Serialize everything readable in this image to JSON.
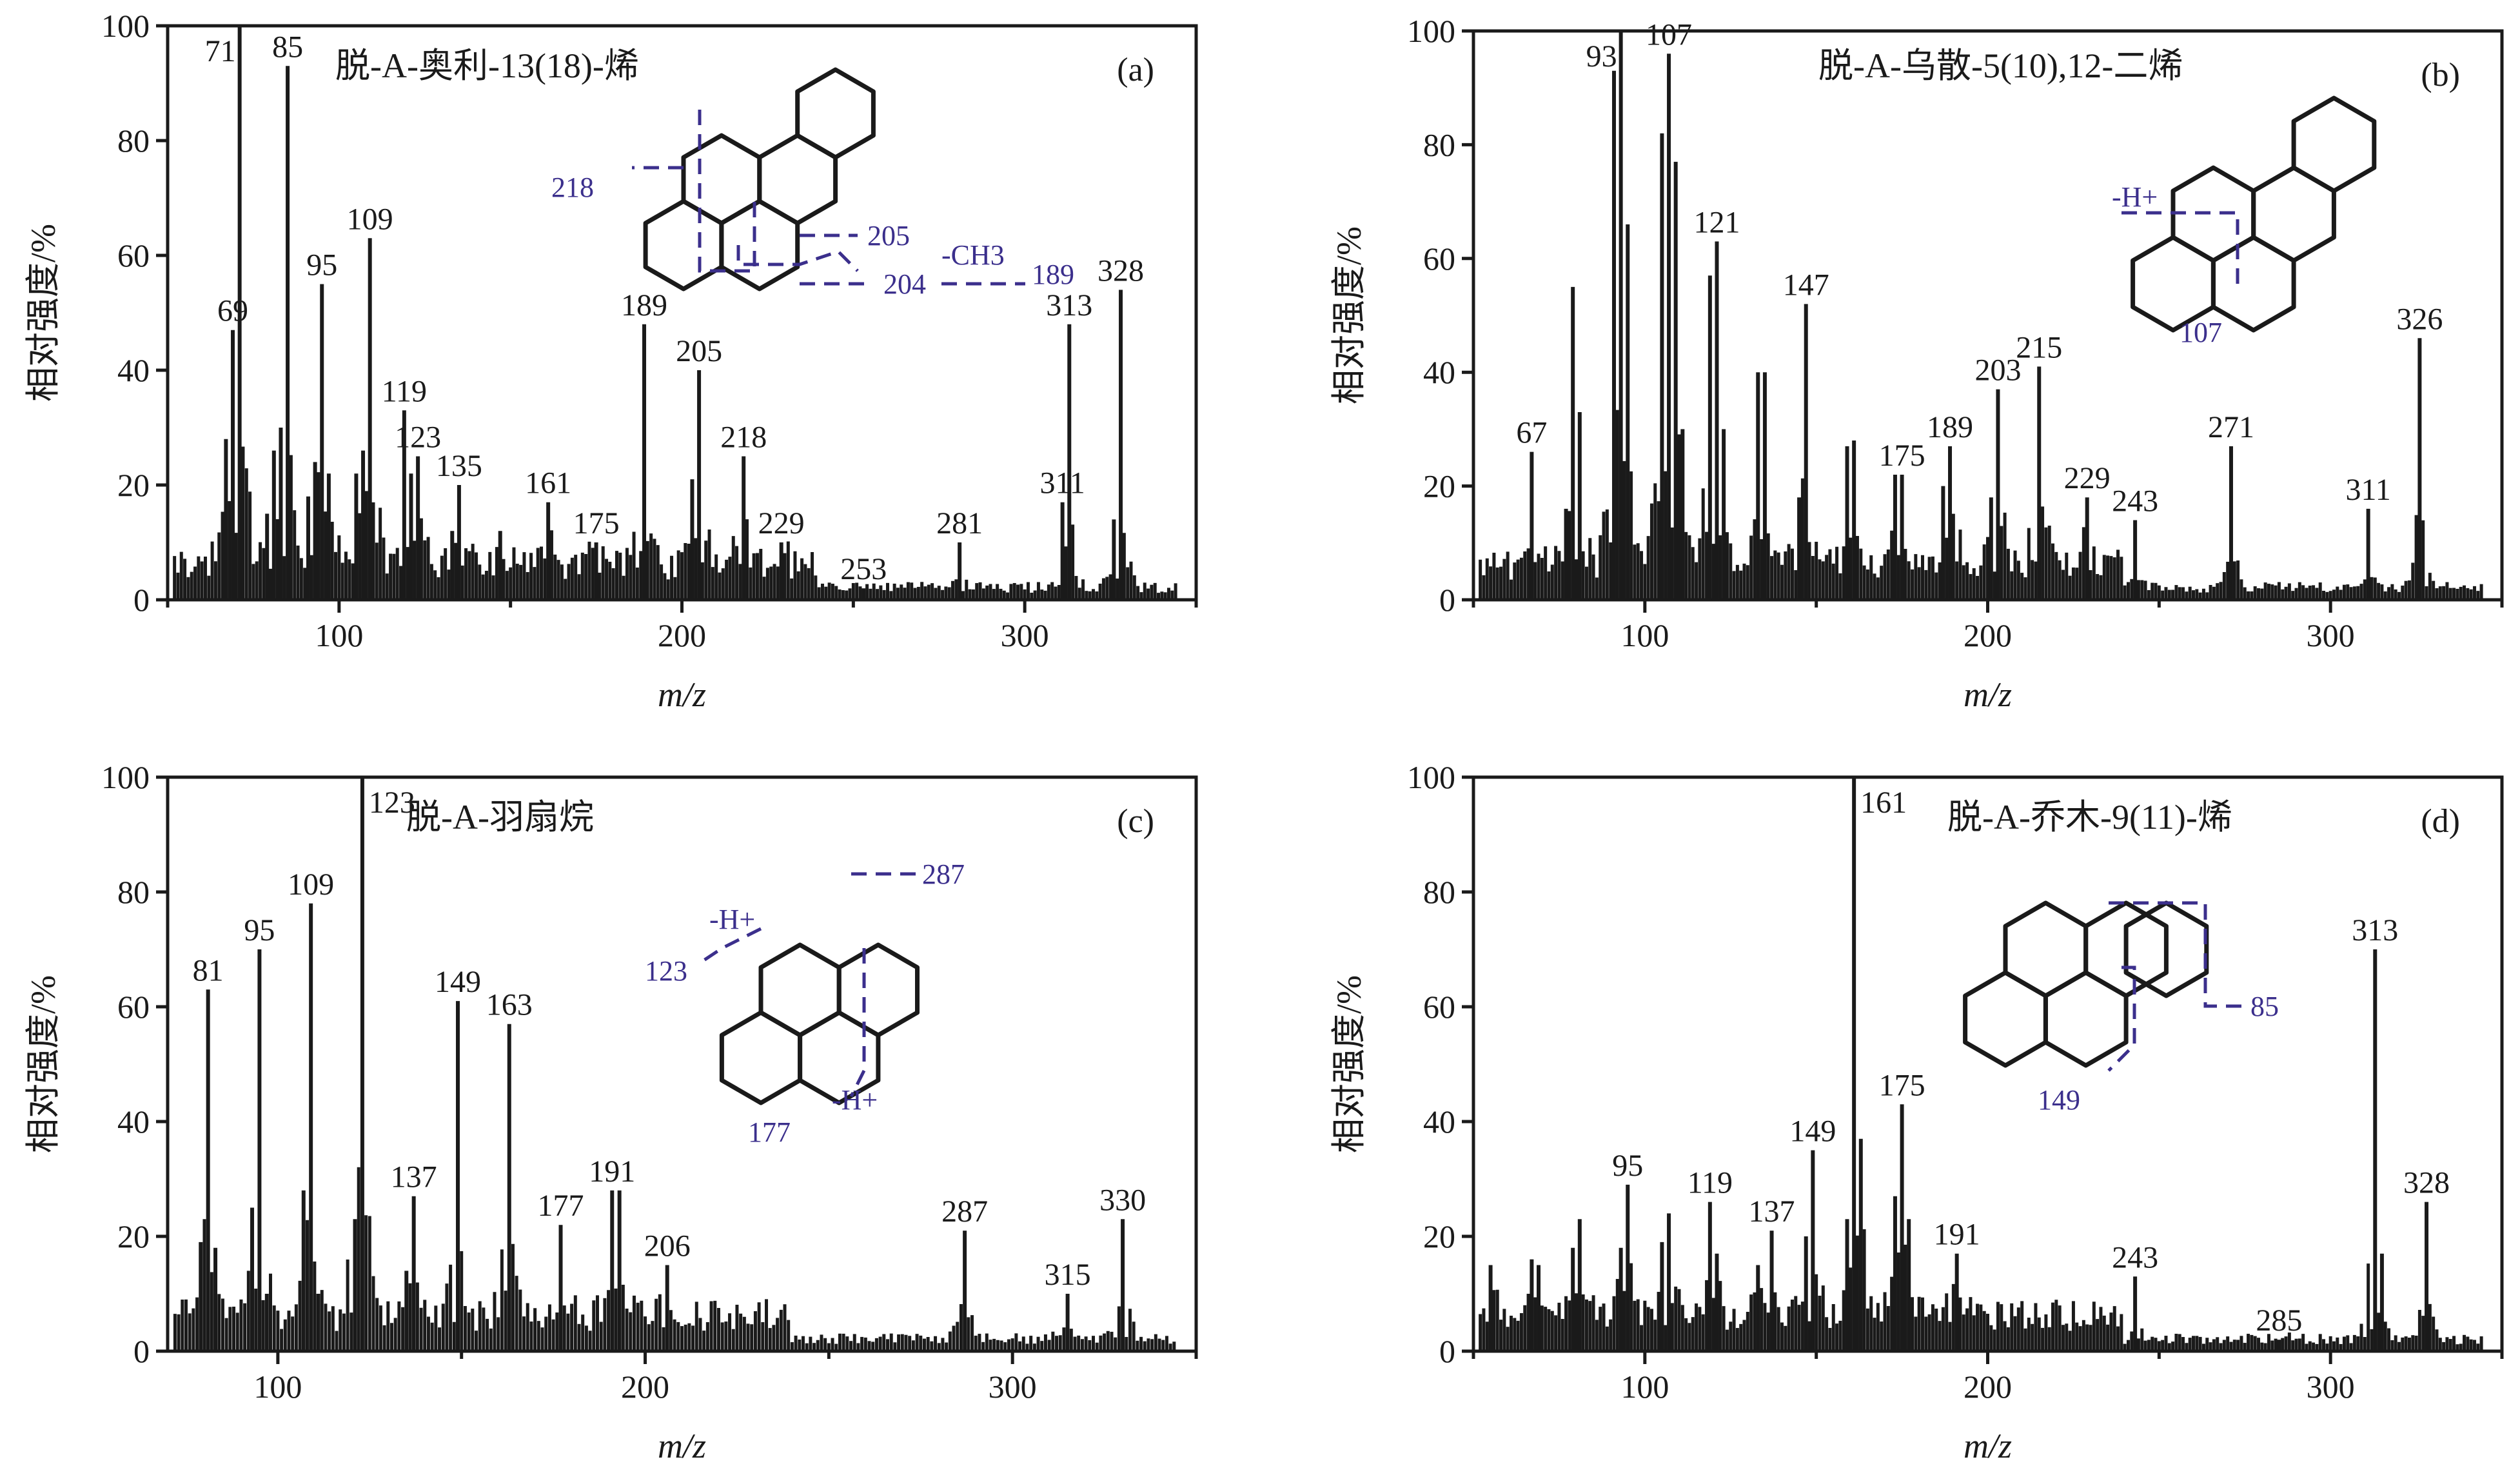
{
  "chart_data": [
    {
      "id": "a",
      "type": "bar",
      "panel_label": "(a)",
      "title": "脱-A-奥利-13(18)-烯",
      "xlabel": "m/z",
      "ylabel": "相对强度/%",
      "xlim": [
        50,
        350
      ],
      "ylim": [
        0,
        100
      ],
      "xticks": [
        100,
        200,
        300
      ],
      "yticks": [
        0,
        20,
        40,
        60,
        80,
        100
      ],
      "major_peaks": [
        {
          "x": 67,
          "y": 28
        },
        {
          "x": 69,
          "y": 47,
          "label": "69"
        },
        {
          "x": 71,
          "y": 100,
          "label": "71"
        },
        {
          "x": 79,
          "y": 15
        },
        {
          "x": 81,
          "y": 26
        },
        {
          "x": 83,
          "y": 30
        },
        {
          "x": 85,
          "y": 93,
          "label": "85"
        },
        {
          "x": 91,
          "y": 18
        },
        {
          "x": 93,
          "y": 24
        },
        {
          "x": 95,
          "y": 55,
          "label": "95"
        },
        {
          "x": 97,
          "y": 22
        },
        {
          "x": 105,
          "y": 22
        },
        {
          "x": 107,
          "y": 26
        },
        {
          "x": 109,
          "y": 63,
          "label": "109"
        },
        {
          "x": 119,
          "y": 33,
          "label": "119"
        },
        {
          "x": 121,
          "y": 22
        },
        {
          "x": 123,
          "y": 25,
          "label": "123"
        },
        {
          "x": 133,
          "y": 12
        },
        {
          "x": 135,
          "y": 20,
          "label": "135"
        },
        {
          "x": 147,
          "y": 12
        },
        {
          "x": 161,
          "y": 17,
          "label": "161"
        },
        {
          "x": 175,
          "y": 10,
          "label": "175"
        },
        {
          "x": 189,
          "y": 48,
          "label": "189"
        },
        {
          "x": 203,
          "y": 21
        },
        {
          "x": 205,
          "y": 40,
          "label": "205"
        },
        {
          "x": 218,
          "y": 25,
          "label": "218"
        },
        {
          "x": 229,
          "y": 10,
          "label": "229"
        },
        {
          "x": 253,
          "y": 2,
          "label": "253"
        },
        {
          "x": 281,
          "y": 10,
          "label": "281"
        },
        {
          "x": 311,
          "y": 17,
          "label": "311"
        },
        {
          "x": 313,
          "y": 48,
          "label": "313"
        },
        {
          "x": 326,
          "y": 14
        },
        {
          "x": 328,
          "y": 54,
          "label": "328"
        }
      ],
      "fragments": [
        "218",
        "205",
        "-CH3",
        "204",
        "189"
      ]
    },
    {
      "id": "b",
      "type": "bar",
      "panel_label": "(b)",
      "title": "脱-A-乌散-5(10),12-二烯",
      "xlabel": "m/z",
      "ylabel": "相对强度/%",
      "xlim": [
        50,
        350
      ],
      "ylim": [
        0,
        100
      ],
      "xticks": [
        100,
        200,
        300
      ],
      "yticks": [
        0,
        20,
        40,
        60,
        80,
        100
      ],
      "major_peaks": [
        {
          "x": 67,
          "y": 26,
          "label": "67"
        },
        {
          "x": 77,
          "y": 16
        },
        {
          "x": 79,
          "y": 55
        },
        {
          "x": 81,
          "y": 33
        },
        {
          "x": 91,
          "y": 93
        },
        {
          "x": 93,
          "y": 100,
          "label": "93"
        },
        {
          "x": 95,
          "y": 66
        },
        {
          "x": 105,
          "y": 82
        },
        {
          "x": 107,
          "y": 96,
          "label": "107"
        },
        {
          "x": 109,
          "y": 77
        },
        {
          "x": 111,
          "y": 30
        },
        {
          "x": 119,
          "y": 57
        },
        {
          "x": 121,
          "y": 63,
          "label": "121"
        },
        {
          "x": 123,
          "y": 30
        },
        {
          "x": 133,
          "y": 40
        },
        {
          "x": 135,
          "y": 40
        },
        {
          "x": 145,
          "y": 18
        },
        {
          "x": 147,
          "y": 52,
          "label": "147"
        },
        {
          "x": 159,
          "y": 27
        },
        {
          "x": 161,
          "y": 28
        },
        {
          "x": 173,
          "y": 22
        },
        {
          "x": 175,
          "y": 22,
          "label": "175"
        },
        {
          "x": 187,
          "y": 20
        },
        {
          "x": 189,
          "y": 27,
          "label": "189"
        },
        {
          "x": 201,
          "y": 18
        },
        {
          "x": 203,
          "y": 37,
          "label": "203"
        },
        {
          "x": 215,
          "y": 41,
          "label": "215"
        },
        {
          "x": 229,
          "y": 18,
          "label": "229"
        },
        {
          "x": 243,
          "y": 14,
          "label": "243"
        },
        {
          "x": 271,
          "y": 27,
          "label": "271"
        },
        {
          "x": 311,
          "y": 16,
          "label": "311"
        },
        {
          "x": 326,
          "y": 46,
          "label": "326"
        }
      ],
      "fragments": [
        "-H+",
        "107"
      ]
    },
    {
      "id": "c",
      "type": "bar",
      "panel_label": "(c)",
      "title": "脱-A-羽扇烷",
      "xlabel": "m/z",
      "ylabel": "相对强度/%",
      "xlim": [
        70,
        350
      ],
      "ylim": [
        0,
        100
      ],
      "xticks": [
        100,
        200,
        300
      ],
      "yticks": [
        0,
        20,
        40,
        60,
        80,
        100
      ],
      "major_peaks": [
        {
          "x": 79,
          "y": 19
        },
        {
          "x": 81,
          "y": 63,
          "label": "81"
        },
        {
          "x": 83,
          "y": 18
        },
        {
          "x": 93,
          "y": 25
        },
        {
          "x": 95,
          "y": 70,
          "label": "95"
        },
        {
          "x": 97,
          "y": 10
        },
        {
          "x": 107,
          "y": 28
        },
        {
          "x": 109,
          "y": 78,
          "label": "109"
        },
        {
          "x": 111,
          "y": 10
        },
        {
          "x": 121,
          "y": 23
        },
        {
          "x": 123,
          "y": 100,
          "label": "123"
        },
        {
          "x": 135,
          "y": 14
        },
        {
          "x": 137,
          "y": 27,
          "label": "137"
        },
        {
          "x": 149,
          "y": 61,
          "label": "149"
        },
        {
          "x": 163,
          "y": 57,
          "label": "163"
        },
        {
          "x": 177,
          "y": 22,
          "label": "177"
        },
        {
          "x": 191,
          "y": 28,
          "label": "191"
        },
        {
          "x": 193,
          "y": 28
        },
        {
          "x": 206,
          "y": 15,
          "label": "206"
        },
        {
          "x": 287,
          "y": 21,
          "label": "287"
        },
        {
          "x": 315,
          "y": 10,
          "label": "315"
        },
        {
          "x": 330,
          "y": 23,
          "label": "330"
        }
      ],
      "fragments": [
        "287",
        "-H+",
        "123",
        "-H+",
        "177"
      ]
    },
    {
      "id": "d",
      "type": "bar",
      "panel_label": "(d)",
      "title": "脱-A-乔木-9(11)-烯",
      "xlabel": "m/z",
      "ylabel": "相对强度/%",
      "xlim": [
        50,
        350
      ],
      "ylim": [
        0,
        100
      ],
      "xticks": [
        100,
        200,
        300
      ],
      "yticks": [
        0,
        20,
        40,
        60,
        80,
        100
      ],
      "major_peaks": [
        {
          "x": 55,
          "y": 15
        },
        {
          "x": 67,
          "y": 16
        },
        {
          "x": 69,
          "y": 15
        },
        {
          "x": 79,
          "y": 18
        },
        {
          "x": 81,
          "y": 23
        },
        {
          "x": 93,
          "y": 18
        },
        {
          "x": 95,
          "y": 29,
          "label": "95"
        },
        {
          "x": 105,
          "y": 19
        },
        {
          "x": 107,
          "y": 24
        },
        {
          "x": 119,
          "y": 26,
          "label": "119"
        },
        {
          "x": 121,
          "y": 17
        },
        {
          "x": 133,
          "y": 15
        },
        {
          "x": 137,
          "y": 21,
          "label": "137"
        },
        {
          "x": 147,
          "y": 20
        },
        {
          "x": 149,
          "y": 35,
          "label": "149"
        },
        {
          "x": 159,
          "y": 23
        },
        {
          "x": 161,
          "y": 100,
          "label": "161"
        },
        {
          "x": 163,
          "y": 37
        },
        {
          "x": 173,
          "y": 27
        },
        {
          "x": 175,
          "y": 43,
          "label": "175"
        },
        {
          "x": 177,
          "y": 23
        },
        {
          "x": 191,
          "y": 17,
          "label": "191"
        },
        {
          "x": 243,
          "y": 13,
          "label": "243"
        },
        {
          "x": 285,
          "y": 2,
          "label": "285"
        },
        {
          "x": 313,
          "y": 70,
          "label": "313"
        },
        {
          "x": 315,
          "y": 17
        },
        {
          "x": 328,
          "y": 26,
          "label": "328"
        }
      ],
      "fragments": [
        "85",
        "149"
      ]
    }
  ]
}
